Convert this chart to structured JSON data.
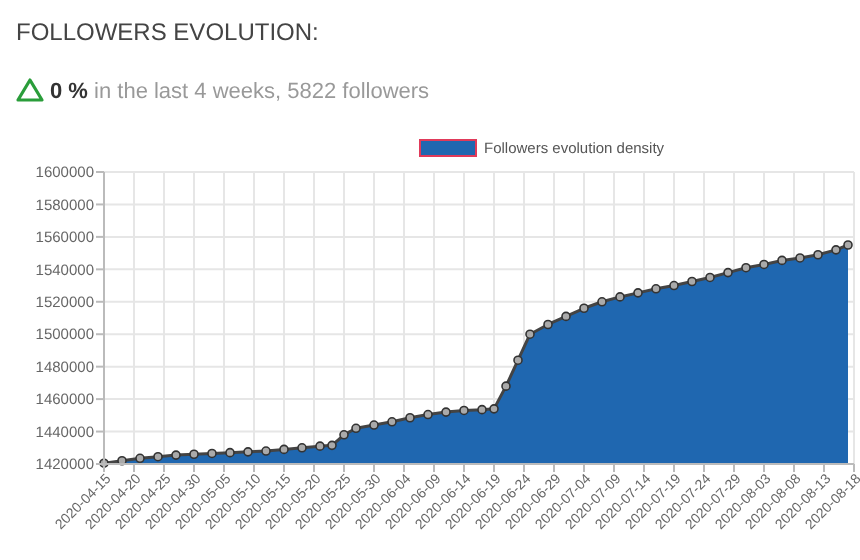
{
  "chart_data": {
    "type": "area",
    "title": "FOLLOWERS EVOLUTION:",
    "subtitle": "0 % in the last 4 weeks, 5822 followers",
    "x": [
      "2020-04-15",
      "2020-04-18",
      "2020-04-21",
      "2020-04-24",
      "2020-04-27",
      "2020-04-30",
      "2020-05-03",
      "2020-05-06",
      "2020-05-09",
      "2020-05-12",
      "2020-05-15",
      "2020-05-18",
      "2020-05-21",
      "2020-05-23",
      "2020-05-25",
      "2020-05-27",
      "2020-05-30",
      "2020-06-02",
      "2020-06-05",
      "2020-06-08",
      "2020-06-11",
      "2020-06-14",
      "2020-06-17",
      "2020-06-19",
      "2020-06-21",
      "2020-06-23",
      "2020-06-25",
      "2020-06-28",
      "2020-07-01",
      "2020-07-04",
      "2020-07-07",
      "2020-07-10",
      "2020-07-13",
      "2020-07-16",
      "2020-07-19",
      "2020-07-22",
      "2020-07-25",
      "2020-07-28",
      "2020-07-31",
      "2020-08-03",
      "2020-08-06",
      "2020-08-09",
      "2020-08-12",
      "2020-08-15",
      "2020-08-17"
    ],
    "series": [
      {
        "name": "Followers evolution density",
        "color": "#1f67b0",
        "values": [
          1420500,
          1422000,
          1423500,
          1424500,
          1425500,
          1426000,
          1426500,
          1427000,
          1427500,
          1428000,
          1429000,
          1430000,
          1431000,
          1431500,
          1438000,
          1442000,
          1444000,
          1446000,
          1448500,
          1450500,
          1452000,
          1453000,
          1453500,
          1454000,
          1468000,
          1484000,
          1500000,
          1506000,
          1511000,
          1516000,
          1520000,
          1523000,
          1525500,
          1528000,
          1530000,
          1532500,
          1535000,
          1538000,
          1541000,
          1543000,
          1545500,
          1547000,
          1549000,
          1552000,
          1555000
        ]
      }
    ],
    "xlim": [
      "2020-04-15",
      "2020-08-18"
    ],
    "xticks": [
      "2020-04-15",
      "2020-04-20",
      "2020-04-25",
      "2020-04-30",
      "2020-05-05",
      "2020-05-10",
      "2020-05-15",
      "2020-05-20",
      "2020-05-25",
      "2020-05-30",
      "2020-06-04",
      "2020-06-09",
      "2020-06-14",
      "2020-06-19",
      "2020-06-24",
      "2020-06-29",
      "2020-07-04",
      "2020-07-09",
      "2020-07-14",
      "2020-07-19",
      "2020-07-24",
      "2020-07-29",
      "2020-08-03",
      "2020-08-08",
      "2020-08-13",
      "2020-08-18"
    ],
    "ylim": [
      1420000,
      1600000
    ],
    "yticks": [
      1420000,
      1440000,
      1460000,
      1480000,
      1500000,
      1520000,
      1540000,
      1560000,
      1580000,
      1600000
    ],
    "grid": true,
    "legend": "top",
    "marker": "circle"
  }
}
